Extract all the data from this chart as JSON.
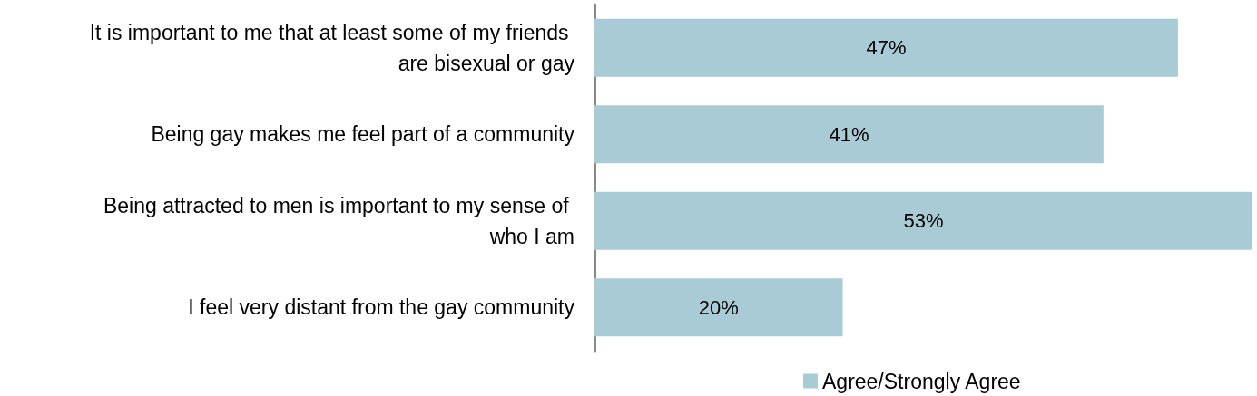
{
  "chart_data": {
    "type": "bar",
    "orientation": "horizontal",
    "categories": [
      "It is important to me that at least some of my friends are bisexual or gay",
      "Being gay makes me feel part of a community",
      "Being attracted to men is important to my sense of who I am",
      "I feel very distant from the gay community"
    ],
    "series": [
      {
        "name": "Agree/Strongly Agree",
        "color": "#a9cbd6",
        "values": [
          47,
          41,
          53,
          20
        ],
        "value_labels": [
          "47%",
          "41%",
          "53%",
          "20%"
        ]
      }
    ],
    "legend": "bottom"
  }
}
